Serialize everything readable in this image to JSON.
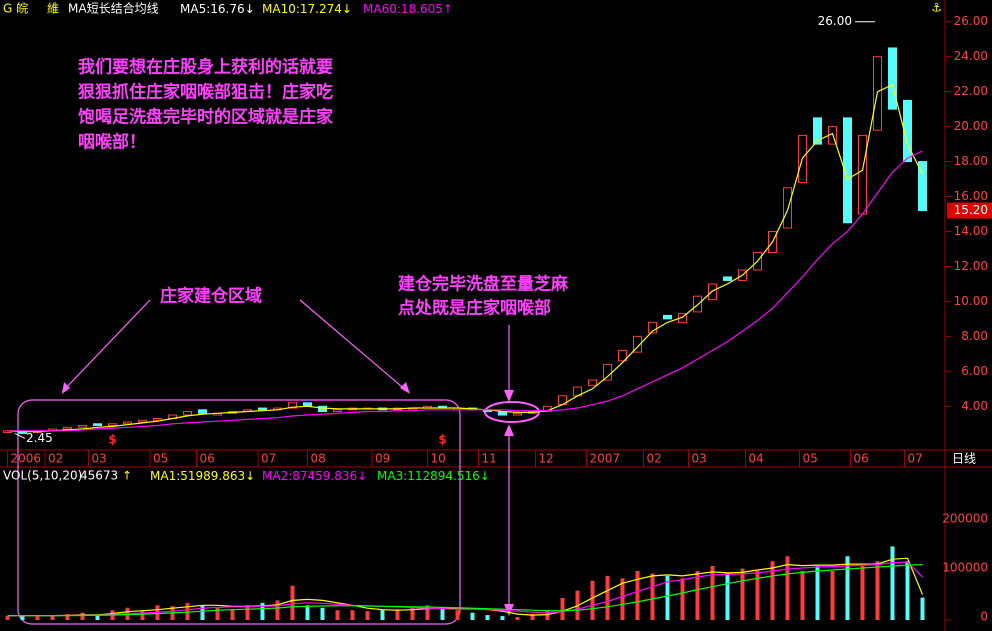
{
  "chart_data": [
    {
      "type": "candlestick",
      "stock_name": [
        "G 皖",
        "維"
      ],
      "indicator": "MA短长结合均线",
      "legend": [
        {
          "text": "MA5:",
          "value": 16.76,
          "arrow": "↓",
          "color": "#ffffff"
        },
        {
          "text": "MA10:",
          "value": 17.274,
          "arrow": "↓",
          "color": "#ffff00"
        },
        {
          "text": "MA60:",
          "value": 18.605,
          "arrow": "↑",
          "color": "#ff00ff"
        }
      ],
      "open": [
        2.5,
        2.6,
        2.5,
        2.6,
        2.7,
        2.8,
        3.0,
        2.9,
        3.0,
        3.1,
        3.2,
        3.3,
        3.5,
        3.8,
        3.5,
        3.6,
        3.7,
        3.9,
        3.8,
        3.9,
        4.2,
        4.0,
        3.7,
        3.8,
        3.9,
        3.9,
        3.8,
        3.9,
        3.9,
        4.0,
        3.8,
        3.9,
        3.8,
        3.7,
        3.5,
        3.6,
        3.7,
        4.1,
        4.6,
        5.2,
        5.5,
        6.6,
        7.1,
        8.2,
        9.2,
        8.8,
        9.4,
        10.1,
        11.4,
        11.2,
        11.8,
        12.8,
        14.2,
        16.8,
        20.5,
        19.0,
        20.5,
        15.0,
        19.8,
        24.5,
        21.5,
        18.0
      ],
      "close": [
        2.6,
        2.45,
        2.6,
        2.7,
        2.8,
        2.9,
        2.9,
        3.0,
        3.1,
        3.2,
        3.3,
        3.5,
        3.7,
        3.6,
        3.6,
        3.7,
        3.8,
        3.8,
        3.9,
        4.2,
        4.0,
        3.7,
        3.8,
        3.9,
        3.9,
        3.8,
        3.9,
        3.9,
        4.0,
        3.9,
        3.9,
        3.8,
        3.7,
        3.5,
        3.6,
        3.7,
        4.0,
        4.6,
        5.1,
        5.5,
        6.4,
        7.2,
        8.0,
        8.8,
        9.0,
        9.3,
        10.3,
        11.0,
        11.2,
        11.8,
        12.8,
        14.0,
        16.5,
        19.5,
        19.0,
        20.0,
        14.5,
        19.5,
        24.0,
        21.0,
        18.0,
        15.2
      ],
      "up_color": "#ff3c3c",
      "down_color": "#54fcfc",
      "series": [
        {
          "color": "#ffff00",
          "values": [
            2.6,
            2.55,
            2.55,
            2.6,
            2.65,
            2.7,
            2.8,
            2.85,
            2.95,
            3.05,
            3.15,
            3.3,
            3.45,
            3.55,
            3.6,
            3.65,
            3.7,
            3.75,
            3.8,
            3.95,
            4.0,
            3.9,
            3.85,
            3.85,
            3.85,
            3.85,
            3.85,
            3.9,
            3.9,
            3.9,
            3.9,
            3.85,
            3.8,
            3.7,
            3.65,
            3.65,
            3.75,
            4.1,
            4.6,
            5.0,
            5.7,
            6.5,
            7.4,
            8.3,
            8.8,
            9.1,
            9.8,
            10.6,
            11.0,
            11.5,
            12.3,
            13.4,
            15.2,
            18.2,
            19.2,
            19.6,
            17.0,
            17.5,
            22.0,
            22.4,
            19.0,
            17.274
          ]
        },
        {
          "color": "#ff00ff",
          "values": [
            2.6,
            2.6,
            2.6,
            2.6,
            2.6,
            2.65,
            2.7,
            2.75,
            2.8,
            2.85,
            2.9,
            3.0,
            3.05,
            3.1,
            3.15,
            3.2,
            3.25,
            3.3,
            3.35,
            3.45,
            3.5,
            3.55,
            3.6,
            3.65,
            3.7,
            3.7,
            3.75,
            3.75,
            3.8,
            3.8,
            3.8,
            3.8,
            3.8,
            3.8,
            3.75,
            3.75,
            3.75,
            3.8,
            3.9,
            4.1,
            4.3,
            4.6,
            5.0,
            5.4,
            5.8,
            6.2,
            6.7,
            7.2,
            7.7,
            8.3,
            8.9,
            9.6,
            10.5,
            11.4,
            12.4,
            13.3,
            14.0,
            15.0,
            16.2,
            17.4,
            18.2,
            18.605
          ]
        }
      ],
      "xlim": [
        -0.5,
        62.5
      ],
      "xticks": [
        {
          "value": 0,
          "label": "2006"
        },
        {
          "value": 2.5,
          "label": "02"
        },
        {
          "value": 5.4,
          "label": "03"
        },
        {
          "value": 9.5,
          "label": "05"
        },
        {
          "value": 12.6,
          "label": "06"
        },
        {
          "value": 16.7,
          "label": "07"
        },
        {
          "value": 20,
          "label": "08"
        },
        {
          "value": 24.3,
          "label": "09"
        },
        {
          "value": 28,
          "label": "10"
        },
        {
          "value": 31.4,
          "label": "11"
        },
        {
          "value": 35.2,
          "label": "12"
        },
        {
          "value": 38.6,
          "label": "2007"
        },
        {
          "value": 42.4,
          "label": "02"
        },
        {
          "value": 45.4,
          "label": "03"
        },
        {
          "value": 49.2,
          "label": "04"
        },
        {
          "value": 52.8,
          "label": "05"
        },
        {
          "value": 56.2,
          "label": "06"
        },
        {
          "value": 59.8,
          "label": "07"
        }
      ],
      "x_unit_label": "日线",
      "ylim": [
        1.5,
        26.5
      ],
      "yticks": [
        {
          "value": 4,
          "label": "4.00"
        },
        {
          "value": 6,
          "label": "6.00"
        },
        {
          "value": 8,
          "label": "8.00"
        },
        {
          "value": 10,
          "label": "10.00"
        },
        {
          "value": 12,
          "label": "12.00"
        },
        {
          "value": 14,
          "label": "14.00"
        },
        {
          "value": 16,
          "label": "16.00"
        },
        {
          "value": 18,
          "label": "18.00"
        },
        {
          "value": 20,
          "label": "20.00"
        },
        {
          "value": 22,
          "label": "22.00"
        },
        {
          "value": 24,
          "label": "24.00"
        },
        {
          "value": 26,
          "label": "26.00"
        }
      ],
      "high_label": {
        "value": 26,
        "label": "26.00"
      },
      "low_label": {
        "value": 2.45,
        "label": "2.45"
      },
      "last_price": {
        "value": 15.2,
        "label": "15.20"
      },
      "signals": [
        {
          "x": 7,
          "label": "$"
        },
        {
          "x": 29,
          "label": "$"
        }
      ],
      "annotations": [
        "我们要想在庄股身上获利的话就要",
        "狠狠抓住庄家咽喉部狙击！庄家吃",
        "饱喝足洗盘完毕时的区域就是庄家",
        "咽喉部！",
        "庄家建仓区域",
        "建仓完毕洗盘至量芝麻",
        "点处既是庄家咽喉部"
      ]
    },
    {
      "type": "bar",
      "title": "VOL(5,10,20)",
      "last_value": 45673,
      "last_arrow": "↑",
      "legend": [
        {
          "text": "MA1:",
          "value": 51989.863,
          "arrow": "↓",
          "color": "#ffff00"
        },
        {
          "text": "MA2:",
          "value": 87459.836,
          "arrow": "↓",
          "color": "#ff00ff"
        },
        {
          "text": "MA3:",
          "value": 112894.516,
          "arrow": "↓",
          "color": "#00ff00"
        }
      ],
      "values": [
        8000,
        10000,
        7000,
        9000,
        12000,
        15000,
        10000,
        20000,
        25000,
        18000,
        30000,
        28000,
        35000,
        30000,
        25000,
        22000,
        30000,
        35000,
        40000,
        70000,
        30000,
        25000,
        20000,
        20000,
        18000,
        20000,
        22000,
        25000,
        30000,
        25000,
        20000,
        15000,
        10000,
        8000,
        6000,
        12000,
        20000,
        45000,
        60000,
        80000,
        90000,
        85000,
        100000,
        95000,
        90000,
        85000,
        100000,
        110000,
        95000,
        105000,
        100000,
        120000,
        130000,
        100000,
        110000,
        100000,
        130000,
        110000,
        120000,
        150000,
        120000,
        45673
      ],
      "series": [
        {
          "color": "#ffff00",
          "values": [
            9000,
            9000,
            9000,
            9000,
            9500,
            10500,
            10500,
            13000,
            17000,
            19000,
            21000,
            24000,
            27000,
            30000,
            30000,
            28000,
            28000,
            29000,
            31000,
            40000,
            42000,
            40000,
            35000,
            30000,
            24000,
            21000,
            20000,
            21000,
            23000,
            24000,
            24000,
            23000,
            21000,
            18000,
            12000,
            10000,
            11000,
            18000,
            29000,
            45000,
            60000,
            75000,
            83000,
            90000,
            92000,
            90000,
            94000,
            98000,
            96000,
            97000,
            102000,
            106000,
            113000,
            111000,
            112000,
            112000,
            114000,
            114000,
            114000,
            124000,
            126000,
            51989.863
          ]
        },
        {
          "color": "#ff00ff",
          "values": [
            9000,
            9000,
            9000,
            9000,
            9200,
            9500,
            10000,
            11000,
            13000,
            14000,
            16000,
            18000,
            21000,
            24000,
            26000,
            27000,
            27000,
            28000,
            29000,
            33000,
            35000,
            34000,
            32000,
            30000,
            29000,
            28000,
            27000,
            25000,
            24000,
            23000,
            22000,
            22000,
            21000,
            20000,
            18000,
            16000,
            15000,
            17000,
            22000,
            30000,
            38000,
            48000,
            58000,
            68000,
            78000,
            82000,
            88000,
            92000,
            93000,
            94000,
            96000,
            100000,
            104000,
            106000,
            108000,
            109000,
            110000,
            112000,
            113000,
            117000,
            118000,
            87459.836
          ]
        },
        {
          "color": "#00ff00",
          "values": [
            9000,
            9000,
            9000,
            9000,
            9000,
            9200,
            9500,
            10000,
            11000,
            12000,
            13000,
            14500,
            16000,
            18000,
            20000,
            21000,
            22000,
            23000,
            24500,
            27000,
            28000,
            28500,
            29000,
            29000,
            28500,
            28000,
            27500,
            27000,
            26500,
            26000,
            25000,
            24000,
            23000,
            22000,
            21000,
            20000,
            19000,
            19000,
            20000,
            23000,
            27000,
            32000,
            37000,
            43000,
            49000,
            55000,
            62000,
            68000,
            74000,
            80000,
            85000,
            90000,
            94000,
            97000,
            100000,
            102000,
            104000,
            106000,
            108000,
            110000,
            112000,
            112894.516
          ]
        }
      ],
      "xlim": [
        -0.5,
        62.5
      ],
      "ylim": [
        0,
        310000
      ],
      "yticks": [
        0,
        100000,
        200000
      ]
    }
  ]
}
